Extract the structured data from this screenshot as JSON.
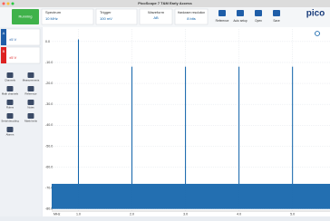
{
  "window_title": "PicoScope 7 T&M Early Access",
  "toolbar": {
    "run": "Running",
    "mode": "Spectrum",
    "span": "10 MHz",
    "trigger": "Trigger",
    "trigger_level": "100 mV",
    "waveform": "Waveform",
    "waveform_value": "AB",
    "resolution": "Hardware resolution",
    "resolution_value": "8 bits"
  },
  "right_buttons": [
    "Reference",
    "Auto setup",
    "Open",
    "Save"
  ],
  "logo": "pico",
  "channels": [
    {
      "name": "A",
      "range": "±5 V"
    },
    {
      "name": "B",
      "range": "±5 V"
    }
  ],
  "tools": [
    "Channels",
    "Measurements",
    "Math channels",
    "Reference",
    "Rulers",
    "Notes",
    "Serial decoding",
    "Mask limits",
    "Alarms"
  ],
  "chart_data": {
    "type": "spectrum",
    "x": [
      1,
      2,
      3,
      4,
      5
    ],
    "values": [
      1,
      -12,
      -12,
      -12,
      -12
    ],
    "color": "#0b5fa8",
    "noise_floor": [
      -80,
      -68
    ],
    "x_unit": "MHz",
    "xlim": [
      0.5,
      5.7
    ],
    "xticks": [
      {
        "value": 1,
        "label": "1.0"
      },
      {
        "value": 2,
        "label": "2.0"
      },
      {
        "value": 3,
        "label": "3.0"
      },
      {
        "value": 4,
        "label": "4.0"
      },
      {
        "value": 5,
        "label": "5.0"
      }
    ],
    "ylim": [
      -81,
      6
    ],
    "yticks": [
      {
        "value": 0,
        "label": "0.0"
      },
      {
        "value": -10,
        "label": "-10.0"
      },
      {
        "value": -20,
        "label": "-20.0"
      },
      {
        "value": -30,
        "label": "-30.0"
      },
      {
        "value": -40,
        "label": "-40.0"
      },
      {
        "value": -50,
        "label": "-50.0"
      },
      {
        "value": -60,
        "label": "-60.0"
      },
      {
        "value": -70,
        "label": "-70.0"
      },
      {
        "value": -80,
        "label": "-80.0"
      }
    ],
    "grid": true
  }
}
